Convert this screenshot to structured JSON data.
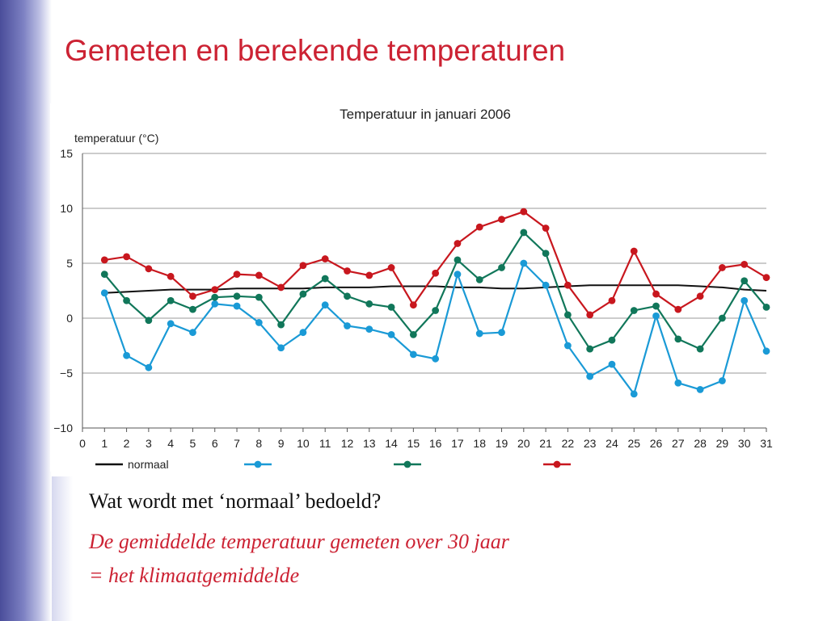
{
  "slide": {
    "title": "Gemeten en berekende temperaturen",
    "question": "Wat wordt met ‘normaal’ bedoeld?",
    "answer_lines": [
      "De gemiddelde temperatuur gemeten over 30 jaar",
      "= het klimaatgemiddelde"
    ],
    "title_color": "#cc2233",
    "answer_color": "#cc2233"
  },
  "chart_data": {
    "type": "line",
    "title": "Temperatuur in januari 2006",
    "ylabel": "temperatuur (°C)",
    "xlabel": "",
    "x": [
      1,
      2,
      3,
      4,
      5,
      6,
      7,
      8,
      9,
      10,
      11,
      12,
      13,
      14,
      15,
      16,
      17,
      18,
      19,
      20,
      21,
      22,
      23,
      24,
      25,
      26,
      27,
      28,
      29,
      30,
      31
    ],
    "xlim": [
      0,
      31
    ],
    "ylim": [
      -10,
      15
    ],
    "xticks": [
      "0",
      "1",
      "2",
      "3",
      "4",
      "5",
      "6",
      "7",
      "8",
      "9",
      "10",
      "11",
      "12",
      "13",
      "14",
      "15",
      "16",
      "17",
      "18",
      "19",
      "20",
      "21",
      "22",
      "23",
      "24",
      "25",
      "26",
      "27",
      "28",
      "29",
      "30",
      "31"
    ],
    "yticks": [
      {
        "value": 15,
        "label": "15"
      },
      {
        "value": 10,
        "label": "10"
      },
      {
        "value": 5,
        "label": "5"
      },
      {
        "value": 0,
        "label": "0"
      },
      {
        "value": -5,
        "label": "−5"
      },
      {
        "value": -10,
        "label": "−10"
      }
    ],
    "grid": true,
    "legend_position": "bottom",
    "series": [
      {
        "name": "normaal",
        "color": "#111111",
        "markers": false,
        "values": [
          2.3,
          2.4,
          2.5,
          2.6,
          2.6,
          2.6,
          2.7,
          2.7,
          2.7,
          2.7,
          2.8,
          2.8,
          2.8,
          2.9,
          2.9,
          2.9,
          2.8,
          2.8,
          2.7,
          2.7,
          2.8,
          2.9,
          3.0,
          3.0,
          3.0,
          3.0,
          3.0,
          2.9,
          2.8,
          2.6,
          2.5
        ]
      },
      {
        "name": "",
        "color": "#1a9ad6",
        "markers": true,
        "values": [
          2.3,
          -3.4,
          -4.5,
          -0.5,
          -1.3,
          1.3,
          1.1,
          -0.4,
          -2.7,
          -1.3,
          1.2,
          -0.7,
          -1.0,
          -1.5,
          -3.3,
          -3.7,
          4.0,
          -1.4,
          -1.3,
          5.0,
          3.0,
          -2.5,
          -5.3,
          -4.2,
          -6.9,
          0.2,
          -5.9,
          -6.5,
          -5.7,
          1.6,
          -3.0
        ]
      },
      {
        "name": "",
        "color": "#11775a",
        "markers": true,
        "values": [
          4.0,
          1.6,
          -0.2,
          1.6,
          0.8,
          1.9,
          2.0,
          1.9,
          -0.6,
          2.2,
          3.6,
          2.0,
          1.3,
          1.0,
          -1.5,
          0.7,
          5.3,
          3.5,
          4.6,
          7.8,
          5.9,
          0.3,
          -2.8,
          -2.0,
          0.7,
          1.1,
          -1.9,
          -2.8,
          0.0,
          3.4,
          1.0
        ]
      },
      {
        "name": "",
        "color": "#c8171e",
        "markers": true,
        "values": [
          5.3,
          5.6,
          4.5,
          3.8,
          2.0,
          2.6,
          4.0,
          3.9,
          2.8,
          4.8,
          5.4,
          4.3,
          3.9,
          4.6,
          1.2,
          4.1,
          6.8,
          8.3,
          9.0,
          9.7,
          8.2,
          3.0,
          0.3,
          1.6,
          6.1,
          2.2,
          0.8,
          2.0,
          4.6,
          4.9,
          3.7
        ]
      }
    ]
  }
}
